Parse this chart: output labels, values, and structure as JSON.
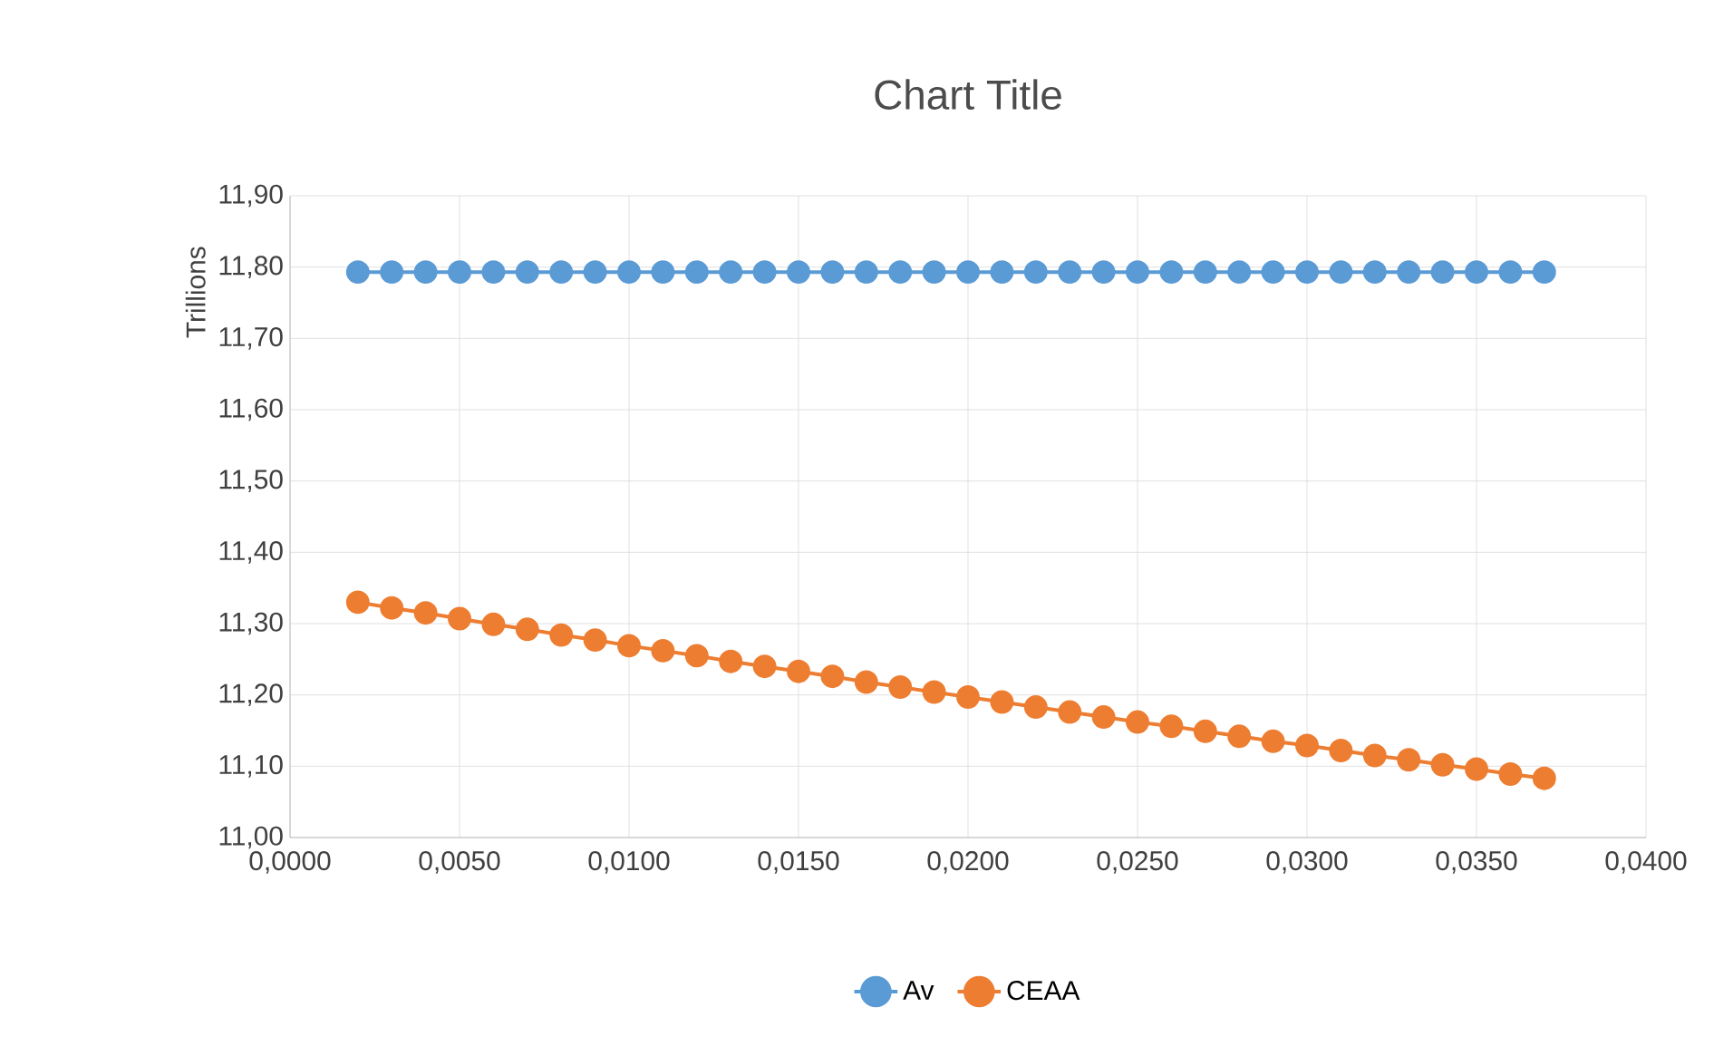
{
  "chart_data": {
    "type": "line",
    "title": "Chart Title",
    "ylabel": "Trillions",
    "x": [
      0.002,
      0.003,
      0.004,
      0.005,
      0.006,
      0.007,
      0.008,
      0.009,
      0.01,
      0.011,
      0.012,
      0.013,
      0.014,
      0.015,
      0.016,
      0.017,
      0.018,
      0.019,
      0.02,
      0.021,
      0.022,
      0.023,
      0.024,
      0.025,
      0.026,
      0.027,
      0.028,
      0.029,
      0.03,
      0.031,
      0.032,
      0.033,
      0.034,
      0.035,
      0.036,
      0.037
    ],
    "series": [
      {
        "name": "Av",
        "color": "#5b9bd5",
        "values": [
          11.793,
          11.793,
          11.793,
          11.793,
          11.793,
          11.793,
          11.793,
          11.793,
          11.793,
          11.793,
          11.793,
          11.793,
          11.793,
          11.793,
          11.793,
          11.793,
          11.793,
          11.793,
          11.793,
          11.793,
          11.793,
          11.793,
          11.793,
          11.793,
          11.793,
          11.793,
          11.793,
          11.793,
          11.793,
          11.793,
          11.793,
          11.793,
          11.793,
          11.793,
          11.793,
          11.793
        ]
      },
      {
        "name": "CEAA",
        "color": "#ed7d31",
        "values": [
          11.33,
          11.322,
          11.315,
          11.307,
          11.299,
          11.292,
          11.284,
          11.277,
          11.269,
          11.262,
          11.255,
          11.247,
          11.24,
          11.233,
          11.226,
          11.218,
          11.211,
          11.204,
          11.197,
          11.19,
          11.183,
          11.176,
          11.169,
          11.162,
          11.156,
          11.149,
          11.142,
          11.135,
          11.129,
          11.122,
          11.115,
          11.109,
          11.102,
          11.096,
          11.089,
          11.083
        ]
      }
    ],
    "xlim": [
      0,
      0.04
    ],
    "xticks": [
      {
        "value": 0,
        "label": "0,0000"
      },
      {
        "value": 0.005,
        "label": "0,0050"
      },
      {
        "value": 0.01,
        "label": "0,0100"
      },
      {
        "value": 0.015,
        "label": "0,0150"
      },
      {
        "value": 0.02,
        "label": "0,0200"
      },
      {
        "value": 0.025,
        "label": "0,0250"
      },
      {
        "value": 0.03,
        "label": "0,0300"
      },
      {
        "value": 0.035,
        "label": "0,0350"
      },
      {
        "value": 0.04,
        "label": "0,0400"
      }
    ],
    "ylim": [
      11.0,
      11.9
    ],
    "yticks": [
      {
        "value": 11.0,
        "label": "11,00"
      },
      {
        "value": 11.1,
        "label": "11,10"
      },
      {
        "value": 11.2,
        "label": "11,20"
      },
      {
        "value": 11.3,
        "label": "11,30"
      },
      {
        "value": 11.4,
        "label": "11,40"
      },
      {
        "value": 11.5,
        "label": "11,50"
      },
      {
        "value": 11.6,
        "label": "11,60"
      },
      {
        "value": 11.7,
        "label": "11,70"
      },
      {
        "value": 11.8,
        "label": "11,80"
      },
      {
        "value": 11.9,
        "label": "11,90"
      }
    ],
    "grid": true,
    "legend": "bottom",
    "marker": "circle",
    "line_style": "solid"
  }
}
